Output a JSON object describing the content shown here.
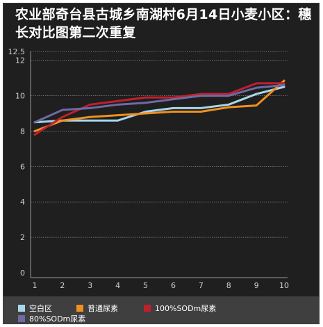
{
  "chart_data": {
    "type": "line",
    "title": "农业部奇台县古城乡南湖村6月14日小麦小区：穗长对比图第二次重复",
    "xlabel": "",
    "ylabel": "",
    "categories": [
      "1",
      "2",
      "3",
      "4",
      "5",
      "6",
      "7",
      "8",
      "9",
      "10"
    ],
    "ylim": [
      0,
      12.5
    ],
    "yticks": [
      "0",
      "2",
      "4",
      "6",
      "8",
      "10",
      "12",
      "12.5"
    ],
    "grid": true,
    "legend_position": "bottom",
    "series": [
      {
        "name": "空白区",
        "color": "#a6d8ec",
        "values": [
          8.5,
          8.6,
          8.6,
          8.6,
          9.1,
          9.3,
          9.3,
          9.5,
          10.1,
          10.5
        ]
      },
      {
        "name": "普通尿素",
        "color": "#f0901e",
        "values": [
          8.0,
          8.6,
          8.8,
          8.9,
          9.0,
          9.1,
          9.1,
          9.35,
          9.45,
          10.85
        ]
      },
      {
        "name": "100%SODm尿素",
        "color": "#c0202e",
        "values": [
          7.8,
          8.8,
          9.5,
          9.7,
          9.9,
          9.9,
          10.1,
          10.1,
          10.7,
          10.7
        ]
      },
      {
        "name": "80%SODm尿素",
        "color": "#6e6aa4",
        "values": [
          8.5,
          9.2,
          9.3,
          9.5,
          9.6,
          9.8,
          10.0,
          10.0,
          10.45,
          10.6
        ]
      }
    ]
  }
}
